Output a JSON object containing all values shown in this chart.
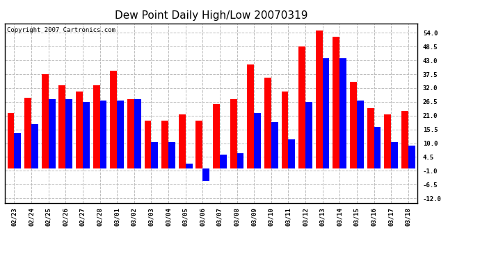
{
  "title": "Dew Point Daily High/Low 20070319",
  "copyright": "Copyright 2007 Cartronics.com",
  "categories": [
    "02/23",
    "02/24",
    "02/25",
    "02/26",
    "02/27",
    "02/28",
    "03/01",
    "03/02",
    "03/03",
    "03/04",
    "03/05",
    "03/06",
    "03/07",
    "03/08",
    "03/09",
    "03/10",
    "03/11",
    "03/12",
    "03/13",
    "03/14",
    "03/15",
    "03/16",
    "03/17",
    "03/18"
  ],
  "high_values": [
    22.0,
    28.0,
    37.5,
    33.0,
    30.5,
    33.0,
    39.0,
    27.5,
    19.0,
    19.0,
    21.5,
    19.0,
    25.5,
    27.5,
    41.5,
    36.0,
    30.5,
    48.5,
    55.0,
    52.5,
    34.5,
    24.0,
    21.5,
    23.0
  ],
  "low_values": [
    14.0,
    17.5,
    27.5,
    27.5,
    26.5,
    27.0,
    27.0,
    27.5,
    10.5,
    10.5,
    2.0,
    -5.0,
    5.5,
    6.0,
    22.0,
    18.5,
    11.5,
    26.5,
    44.0,
    44.0,
    27.0,
    16.5,
    10.5,
    9.0
  ],
  "high_color": "#ff0000",
  "low_color": "#0000ff",
  "bg_color": "#ffffff",
  "plot_bg_color": "#ffffff",
  "grid_color": "#bbbbbb",
  "ylim_min": -13.75,
  "ylim_max": 57.75,
  "yticks": [
    -12.0,
    -6.5,
    -1.0,
    4.5,
    10.0,
    15.5,
    21.0,
    26.5,
    32.0,
    37.5,
    43.0,
    48.5,
    54.0
  ],
  "title_fontsize": 11,
  "copyright_fontsize": 6.5,
  "tick_fontsize": 6.5,
  "bar_width": 0.4
}
